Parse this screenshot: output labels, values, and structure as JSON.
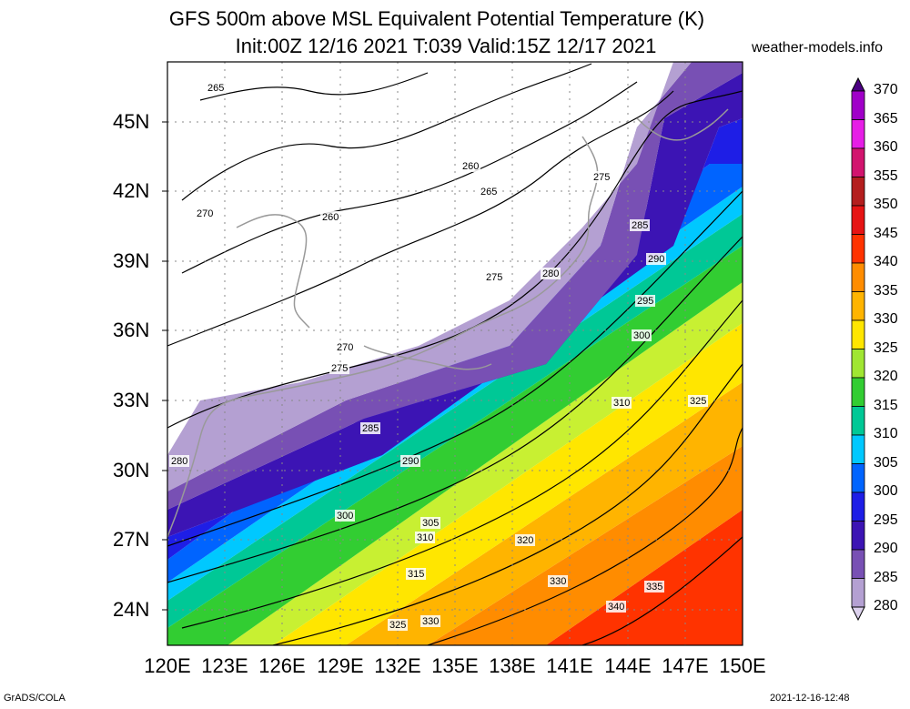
{
  "title": {
    "line1": "GFS 500m above MSL Equivalent Potential Temperature (K)",
    "line2": "Init:00Z 12/16 2021 T:039 Valid:15Z 12/17 2021"
  },
  "credit": "weather-models.info",
  "axes": {
    "lat_labels": [
      "45N",
      "42N",
      "39N",
      "36N",
      "33N",
      "30N",
      "27N",
      "24N"
    ],
    "lon_labels": [
      "120E",
      "123E",
      "126E",
      "129E",
      "132E",
      "135E",
      "138E",
      "141E",
      "144E",
      "147E",
      "150E"
    ]
  },
  "colorbar": {
    "levels": [
      370,
      365,
      360,
      355,
      350,
      345,
      340,
      335,
      330,
      325,
      320,
      315,
      310,
      305,
      300,
      295,
      290,
      285,
      280
    ],
    "colors": [
      "#4b0082",
      "#a000c8",
      "#e61ee6",
      "#d2146e",
      "#b41e1e",
      "#e61414",
      "#ff3300",
      "#ff8c00",
      "#ffb400",
      "#ffe600",
      "#a0e632",
      "#32cd32",
      "#00c896",
      "#00c8ff",
      "#0064ff",
      "#1e1ee6",
      "#3c14b4",
      "#7850b4",
      "#b4a0d2",
      "#ddd2ee"
    ]
  },
  "contour_labels": [
    "265",
    "260",
    "265",
    "260",
    "270",
    "275",
    "275",
    "280",
    "285",
    "290",
    "295",
    "300",
    "310",
    "325",
    "320",
    "330",
    "335",
    "340",
    "325",
    "330",
    "315",
    "310",
    "305",
    "300",
    "290",
    "285",
    "280",
    "275",
    "270"
  ],
  "footer": {
    "left": "GrADS/COLA",
    "right": "2021-12-16-12:48"
  }
}
